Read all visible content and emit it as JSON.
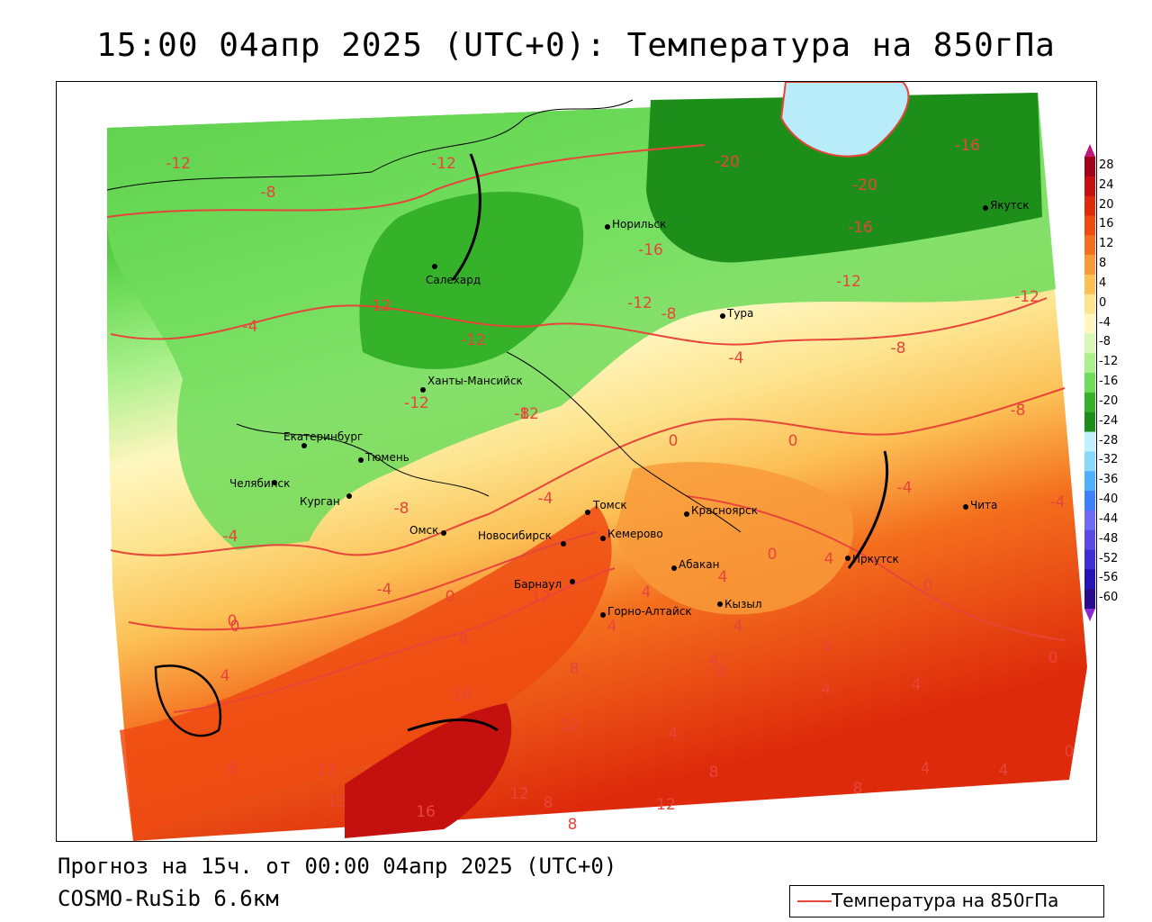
{
  "title": "15:00 04апр 2025 (UTC+0): Температура на 850гПа",
  "footer": {
    "forecast": "Прогноз на 15ч. от 00:00 04апр 2025 (UTC+0)",
    "model": "COSMO-RuSib 6.6км"
  },
  "legend": {
    "label": "Температура на 850гПа",
    "line_color": "#e8453a"
  },
  "colorbar": {
    "ticks": [
      "28",
      "24",
      "20",
      "16",
      "12",
      "8",
      "4",
      "0",
      "-4",
      "-8",
      "-12",
      "-16",
      "-20",
      "-24",
      "-28",
      "-32",
      "-36",
      "-40",
      "-44",
      "-48",
      "-52",
      "-56",
      "-60"
    ],
    "colors": [
      "#a3001b",
      "#c4100f",
      "#dd2a0b",
      "#ee4a12",
      "#f46f1e",
      "#f89a3a",
      "#fcc055",
      "#fde590",
      "#fff6c0",
      "#d9f9b8",
      "#aaf08c",
      "#6fdc5a",
      "#35b22a",
      "#1e8e1a",
      "#c3f0ff",
      "#8ad8ff",
      "#4fb0ff",
      "#3f80ff",
      "#6d6df5",
      "#5a4ae8",
      "#3e2ed6",
      "#2414b8",
      "#2a0b90"
    ]
  },
  "cities": [
    {
      "name": "Норильск"
    },
    {
      "name": "Якутск"
    },
    {
      "name": "Салехард"
    },
    {
      "name": "Тура"
    },
    {
      "name": "Ханты-Мансийск"
    },
    {
      "name": "Екатеринбург"
    },
    {
      "name": "Тюмень"
    },
    {
      "name": "Челябинск"
    },
    {
      "name": "Курган"
    },
    {
      "name": "Омск"
    },
    {
      "name": "Томск"
    },
    {
      "name": "Новосибирск"
    },
    {
      "name": "Кемерово"
    },
    {
      "name": "Красноярск"
    },
    {
      "name": "Абакан"
    },
    {
      "name": "Барнаул"
    },
    {
      "name": "Горно-Алтайск"
    },
    {
      "name": "Кызыл"
    },
    {
      "name": "Иркутск"
    },
    {
      "name": "Чита"
    }
  ],
  "isolines": [
    "-12",
    "-12",
    "-8",
    "-12",
    "-20",
    "-20",
    "-16",
    "-16",
    "-16",
    "-12",
    "-12",
    "-12",
    "-8",
    "-12",
    "-8",
    "-4",
    "-12",
    "-4",
    "-8",
    "-12",
    "-8",
    "0",
    "0",
    "-4",
    "-4",
    "-4",
    "-8",
    "-4",
    "-4",
    "0",
    "0",
    "0",
    "0",
    "4",
    "0",
    "4",
    "4",
    "8",
    "12",
    "4",
    "4",
    "4",
    "4",
    "8",
    "4",
    "8",
    "16",
    "12",
    "4",
    "4",
    "0",
    "8",
    "12",
    "4",
    "8",
    "8",
    "12",
    "12",
    "16",
    "8",
    "8",
    "12",
    "4",
    "4",
    "0"
  ]
}
